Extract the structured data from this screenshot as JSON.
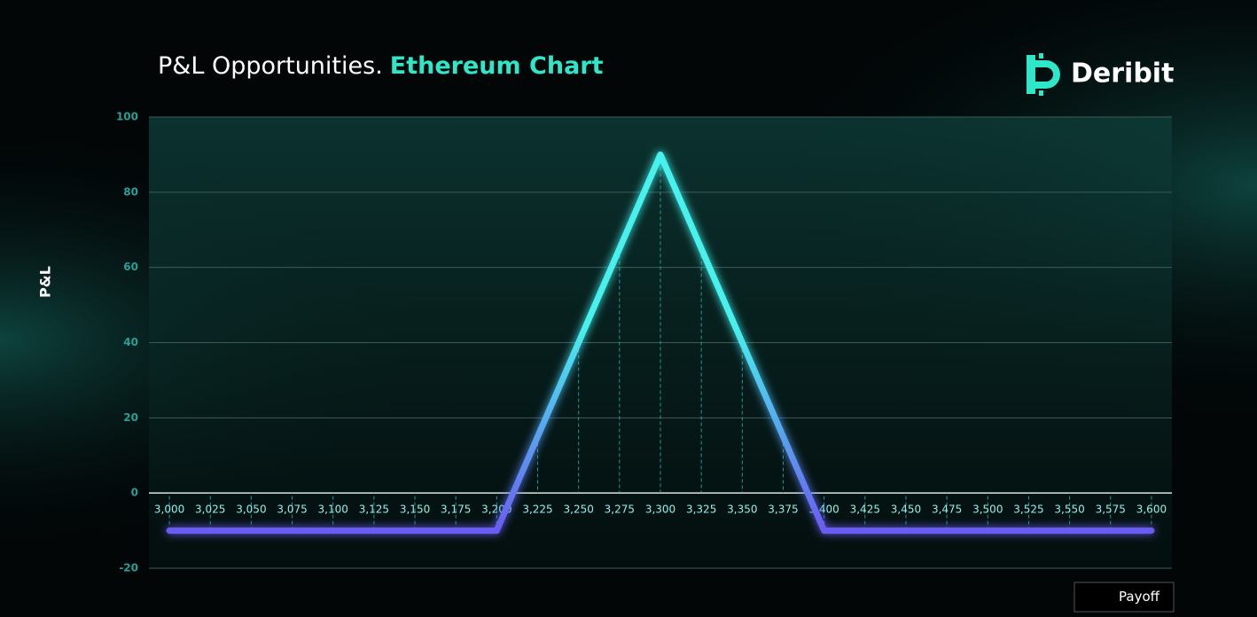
{
  "chart_data": {
    "type": "line",
    "title": "P&L Opportunities.",
    "title_highlight": "Ethereum Chart",
    "brand": "Deribit",
    "y_label": "P&L",
    "x": [
      3000,
      3025,
      3050,
      3075,
      3100,
      3125,
      3150,
      3175,
      3200,
      3225,
      3250,
      3275,
      3300,
      3325,
      3350,
      3375,
      3400,
      3425,
      3450,
      3475,
      3500,
      3525,
      3550,
      3575,
      3600
    ],
    "series": [
      {
        "name": "Payoff",
        "color": "#46f2ee",
        "gradient_color": "#6a5cf2",
        "values": [
          -10,
          -10,
          -10,
          -10,
          -10,
          -10,
          -10,
          -10,
          -10,
          15,
          40,
          65,
          90,
          65,
          40,
          15,
          -10,
          -10,
          -10,
          -10,
          -10,
          -10,
          -10,
          -10,
          -10
        ]
      }
    ],
    "xlim": [
      2987.5,
      3612.5
    ],
    "xticks": [
      {
        "value": 3000,
        "label": "3,000"
      },
      {
        "value": 3025,
        "label": "3,025"
      },
      {
        "value": 3050,
        "label": "3,050"
      },
      {
        "value": 3075,
        "label": "3,075"
      },
      {
        "value": 3100,
        "label": "3,100"
      },
      {
        "value": 3125,
        "label": "3,125"
      },
      {
        "value": 3150,
        "label": "3,150"
      },
      {
        "value": 3175,
        "label": "3,175"
      },
      {
        "value": 3200,
        "label": "3,200"
      },
      {
        "value": 3225,
        "label": "3,225"
      },
      {
        "value": 3250,
        "label": "3,250"
      },
      {
        "value": 3275,
        "label": "3,275"
      },
      {
        "value": 3300,
        "label": "3,300"
      },
      {
        "value": 3325,
        "label": "3,325"
      },
      {
        "value": 3350,
        "label": "3,350"
      },
      {
        "value": 3375,
        "label": "3,375"
      },
      {
        "value": 3400,
        "label": "3,400"
      },
      {
        "value": 3425,
        "label": "3,425"
      },
      {
        "value": 3450,
        "label": "3,450"
      },
      {
        "value": 3475,
        "label": "3,475"
      },
      {
        "value": 3500,
        "label": "3,500"
      },
      {
        "value": 3525,
        "label": "3,525"
      },
      {
        "value": 3550,
        "label": "3,550"
      },
      {
        "value": 3575,
        "label": "3,575"
      },
      {
        "value": 3600,
        "label": "3,600"
      }
    ],
    "ylim": [
      -20,
      100
    ],
    "yticks": [
      -20,
      0,
      20,
      40,
      60,
      80,
      100
    ],
    "grid": true,
    "legend": "bottom-right"
  }
}
